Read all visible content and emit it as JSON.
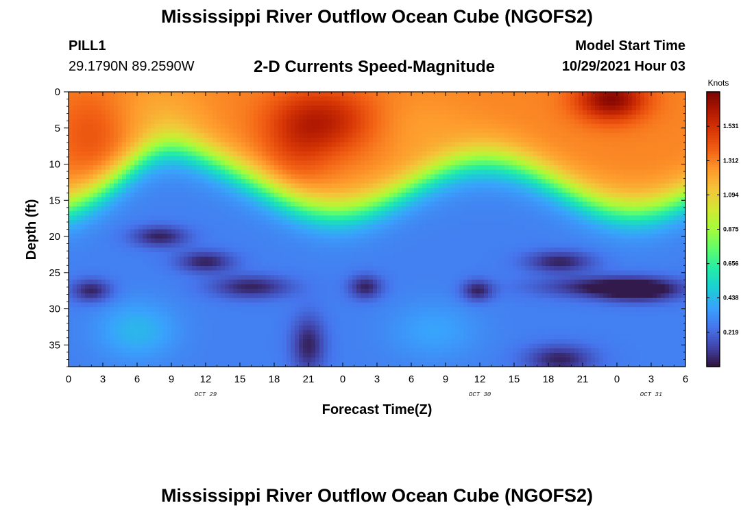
{
  "header": {
    "title": "Mississippi River Outflow Ocean Cube (NGOFS2)",
    "station": "PILL1",
    "coordinates": "29.1790N  89.2590W",
    "subtitle": "2-D Currents Speed-Magnitude",
    "model_start_label": "Model Start Time",
    "model_start_value": "10/29/2021 Hour 03"
  },
  "footer": {
    "title": "Mississippi River Outflow Ocean Cube (NGOFS2)"
  },
  "chart_data": {
    "type": "heatmap",
    "variable": "current speed magnitude",
    "units": "Knots",
    "xlabel": "Forecast Time(Z)",
    "ylabel": "Depth (ft)",
    "xlim_hours": [
      0,
      54
    ],
    "ylim": [
      0,
      38
    ],
    "y_inverted": true,
    "x_tick_labels": [
      "0",
      "3",
      "6",
      "9",
      "12",
      "15",
      "18",
      "21",
      "0",
      "3",
      "6",
      "9",
      "12",
      "15",
      "18",
      "21",
      "0",
      "3",
      "6"
    ],
    "y_ticks": [
      0,
      5,
      10,
      15,
      20,
      25,
      30,
      35
    ],
    "date_labels": [
      {
        "text": "OCT 29",
        "hour": 12
      },
      {
        "text": "OCT 30",
        "hour": 36
      },
      {
        "text": "OCT 31",
        "hour": 51
      }
    ],
    "colorbar": {
      "label": "Knots",
      "min": 0,
      "max": 1.75,
      "tick_values": [
        0.219,
        0.438,
        0.656,
        0.875,
        1.094,
        1.312,
        1.531
      ],
      "tick_labels": [
        "0.219",
        "0.438",
        "0.656",
        "0.875",
        "1.094",
        "1.312",
        "1.531"
      ],
      "colors": [
        "#30123b",
        "#4145ab",
        "#4675ed",
        "#39a2fc",
        "#1bcfd4",
        "#24eca6",
        "#61fc6c",
        "#a4fc3b",
        "#d1e834",
        "#f3c63a",
        "#fe9b2d",
        "#f36315",
        "#d93806",
        "#b11901",
        "#7a0402"
      ]
    },
    "features": [
      {
        "hour": 22.5,
        "depth": 4,
        "speed": 1.55
      },
      {
        "hour": 47.5,
        "depth": 1,
        "speed": 1.7
      },
      {
        "hour": 2,
        "depth": 6,
        "speed": 1.35
      },
      {
        "hour": 8,
        "depth": 20,
        "speed": 0.05
      },
      {
        "hour": 2,
        "depth": 27,
        "speed": 0.05
      },
      {
        "hour": 16,
        "depth": 27,
        "speed": 0.05
      },
      {
        "hour": 21,
        "depth": 36,
        "speed": 0.05
      },
      {
        "hour": 44,
        "depth": 27,
        "speed": 0.05
      },
      {
        "hour": 6,
        "depth": 33,
        "speed": 0.32
      }
    ]
  }
}
